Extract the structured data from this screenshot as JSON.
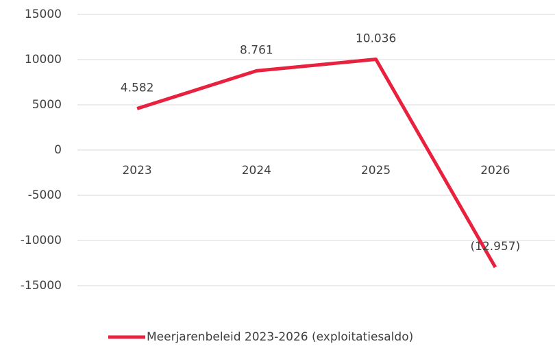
{
  "chart_data": {
    "type": "line",
    "categories": [
      "2023",
      "2024",
      "2025",
      "2026"
    ],
    "series": [
      {
        "name": "Meerjarenbeleid 2023-2026 (exploitatiesaldo)",
        "color": "#e8213f",
        "values": [
          4582,
          8761,
          10036,
          -12957
        ],
        "value_labels": [
          "4.582",
          "8.761",
          "10.036",
          "(12.957)"
        ]
      }
    ],
    "ylim": [
      -15000,
      15000
    ],
    "yticks": [
      15000,
      10000,
      5000,
      0,
      -5000,
      -10000,
      -15000
    ],
    "grid": true,
    "legend": "bottom"
  }
}
